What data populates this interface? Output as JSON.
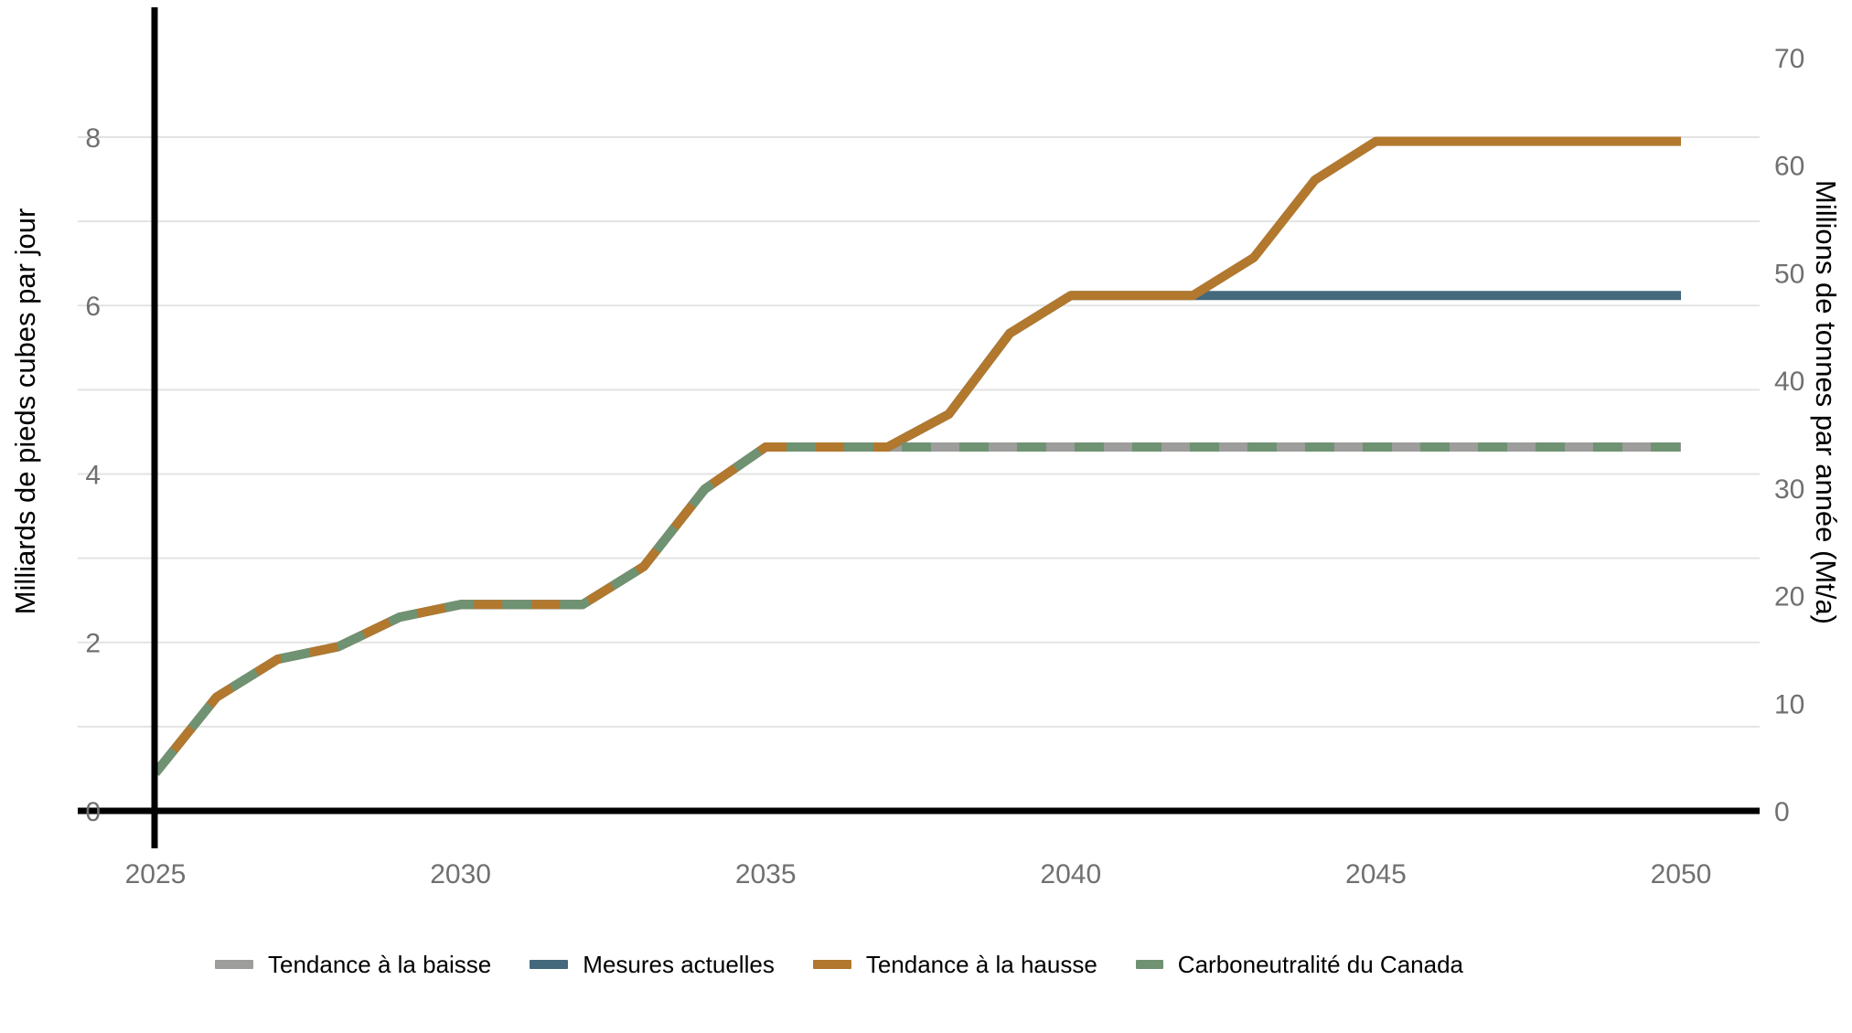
{
  "chart_data": {
    "type": "line",
    "title": "",
    "x": [
      2025,
      2026,
      2027,
      2028,
      2029,
      2030,
      2031,
      2032,
      2033,
      2034,
      2035,
      2036,
      2037,
      2038,
      2039,
      2040,
      2041,
      2042,
      2043,
      2044,
      2045,
      2046,
      2047,
      2048,
      2049,
      2050
    ],
    "series": [
      {
        "name": "Tendance à la baisse",
        "color": "#9d9d9b",
        "dashed": false,
        "swatch_width": 42,
        "values": [
          0.45,
          1.35,
          1.8,
          1.95,
          2.3,
          2.45,
          2.45,
          2.45,
          2.9,
          3.82,
          4.32,
          4.32,
          4.32,
          4.32,
          4.32,
          4.32,
          4.32,
          4.32,
          4.32,
          4.32,
          4.32,
          4.32,
          4.32,
          4.32,
          4.32,
          4.32
        ]
      },
      {
        "name": "Mesures actuelles",
        "color": "#44697d",
        "dashed": false,
        "swatch_width": 42,
        "values": [
          0.45,
          1.35,
          1.8,
          1.95,
          2.3,
          2.45,
          2.45,
          2.45,
          2.9,
          3.82,
          4.32,
          4.32,
          4.32,
          4.71,
          5.67,
          6.12,
          6.12,
          6.12,
          6.12,
          6.12,
          6.12,
          6.12,
          6.12,
          6.12,
          6.12,
          6.12
        ]
      },
      {
        "name": "Tendance à la hausse",
        "color": "#b1782e",
        "dashed": false,
        "swatch_width": 42,
        "values": [
          0.45,
          1.35,
          1.8,
          1.95,
          2.3,
          2.45,
          2.45,
          2.45,
          2.9,
          3.82,
          4.32,
          4.32,
          4.32,
          4.71,
          5.67,
          6.12,
          6.12,
          6.12,
          6.57,
          7.49,
          7.95,
          7.95,
          7.95,
          7.95,
          7.95,
          7.95
        ]
      },
      {
        "name": "Carboneutralité du Canada",
        "color": "#6f9273",
        "dashed": true,
        "swatch_width": 30,
        "values": [
          0.45,
          1.35,
          1.8,
          1.95,
          2.3,
          2.45,
          2.45,
          2.45,
          2.9,
          3.82,
          4.32,
          4.32,
          4.32,
          4.32,
          4.32,
          4.32,
          4.32,
          4.32,
          4.32,
          4.32,
          4.32,
          4.32,
          4.32,
          4.32,
          4.32,
          4.32
        ]
      }
    ],
    "y_left": {
      "label": "Milliards de pieds cubes par jour",
      "ticks": [
        0,
        2,
        4,
        6,
        8
      ],
      "gridlines": [
        1,
        2,
        3,
        4,
        5,
        6,
        7,
        8
      ],
      "range": [
        0,
        9.55
      ]
    },
    "y_right": {
      "label": "Millions de tonnes par année (Mt/a)",
      "ticks": [
        0,
        10,
        20,
        30,
        40,
        50,
        60,
        70
      ],
      "mt_per_unit": 7.82
    },
    "x_axis": {
      "ticks": [
        2025,
        2030,
        2035,
        2040,
        2045,
        2050
      ],
      "range": [
        2025,
        2050
      ]
    },
    "grid": true,
    "legend_position": "bottom",
    "colors": {
      "gridline": "#e3e3e3",
      "axis_line": "#000000",
      "tick_label": "#707070"
    }
  }
}
